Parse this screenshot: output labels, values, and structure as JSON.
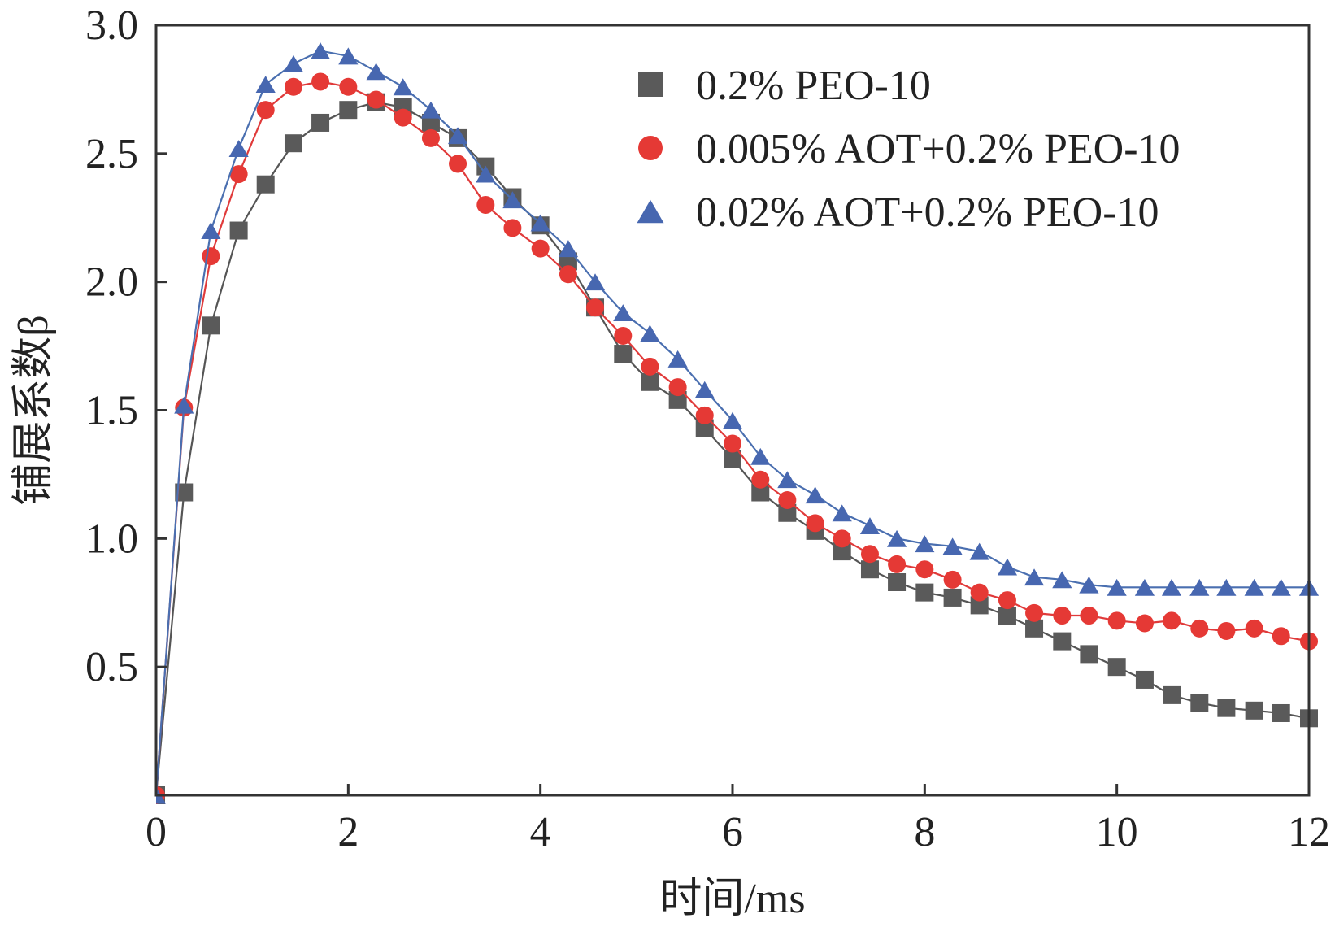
{
  "chart_data": {
    "type": "line",
    "xlabel": "时间/ms",
    "ylabel": "铺展系数β",
    "xlim": [
      0,
      12
    ],
    "ylim": [
      0,
      3.0
    ],
    "xticks": [
      "0",
      "2",
      "4",
      "6",
      "8",
      "10",
      "12"
    ],
    "yticks": [
      "0.5",
      "1.0",
      "1.5",
      "2.0",
      "2.5",
      "3.0"
    ],
    "legend_position": "top-right",
    "grid": false,
    "series": [
      {
        "name": "0.2% PEO-10",
        "marker": "square",
        "color": "#555555",
        "marker_color": "#5a5a5a",
        "x": [
          0,
          0.29,
          0.57,
          0.86,
          1.14,
          1.43,
          1.71,
          2.0,
          2.29,
          2.57,
          2.86,
          3.14,
          3.43,
          3.71,
          4.0,
          4.29,
          4.57,
          4.86,
          5.14,
          5.43,
          5.71,
          6.0,
          6.29,
          6.57,
          6.86,
          7.14,
          7.43,
          7.71,
          8.0,
          8.29,
          8.57,
          8.86,
          9.14,
          9.43,
          9.71,
          10.0,
          10.29,
          10.57,
          10.86,
          11.14,
          11.43,
          11.71,
          12.0
        ],
        "y": [
          0.0,
          1.18,
          1.83,
          2.2,
          2.38,
          2.54,
          2.62,
          2.67,
          2.7,
          2.68,
          2.62,
          2.56,
          2.45,
          2.33,
          2.22,
          2.08,
          1.9,
          1.72,
          1.61,
          1.54,
          1.43,
          1.31,
          1.18,
          1.1,
          1.03,
          0.95,
          0.88,
          0.83,
          0.79,
          0.77,
          0.74,
          0.7,
          0.65,
          0.6,
          0.55,
          0.5,
          0.45,
          0.39,
          0.36,
          0.34,
          0.33,
          0.32,
          0.3
        ]
      },
      {
        "name": "0.005% AOT+0.2% PEO-10",
        "marker": "circle",
        "color": "#e03a3a",
        "marker_color": "#e53935",
        "x": [
          0,
          0.29,
          0.57,
          0.86,
          1.14,
          1.43,
          1.71,
          2.0,
          2.29,
          2.57,
          2.86,
          3.14,
          3.43,
          3.71,
          4.0,
          4.29,
          4.57,
          4.86,
          5.14,
          5.43,
          5.71,
          6.0,
          6.29,
          6.57,
          6.86,
          7.14,
          7.43,
          7.71,
          8.0,
          8.29,
          8.57,
          8.86,
          9.14,
          9.43,
          9.71,
          10.0,
          10.29,
          10.57,
          10.86,
          11.14,
          11.43,
          11.71,
          12.0
        ],
        "y": [
          0.0,
          1.51,
          2.1,
          2.42,
          2.67,
          2.76,
          2.78,
          2.76,
          2.71,
          2.64,
          2.56,
          2.46,
          2.3,
          2.21,
          2.13,
          2.03,
          1.9,
          1.79,
          1.67,
          1.59,
          1.48,
          1.37,
          1.23,
          1.15,
          1.06,
          1.0,
          0.94,
          0.9,
          0.88,
          0.84,
          0.79,
          0.76,
          0.71,
          0.7,
          0.7,
          0.68,
          0.67,
          0.68,
          0.65,
          0.64,
          0.65,
          0.62,
          0.6
        ]
      },
      {
        "name": "0.02% AOT+0.2% PEO-10",
        "marker": "triangle",
        "color": "#4a6fb0",
        "marker_color": "#4767b0",
        "x": [
          0,
          0.29,
          0.57,
          0.86,
          1.14,
          1.43,
          1.71,
          2.0,
          2.29,
          2.57,
          2.86,
          3.14,
          3.43,
          3.71,
          4.0,
          4.29,
          4.57,
          4.86,
          5.14,
          5.43,
          5.71,
          6.0,
          6.29,
          6.57,
          6.86,
          7.14,
          7.43,
          7.71,
          8.0,
          8.29,
          8.57,
          8.86,
          9.14,
          9.43,
          9.71,
          10.0,
          10.29,
          10.57,
          10.86,
          11.14,
          11.43,
          11.71,
          12.0
        ],
        "y": [
          0.0,
          1.52,
          2.2,
          2.52,
          2.77,
          2.85,
          2.9,
          2.88,
          2.82,
          2.76,
          2.67,
          2.57,
          2.42,
          2.32,
          2.23,
          2.13,
          2.0,
          1.88,
          1.8,
          1.7,
          1.58,
          1.46,
          1.32,
          1.23,
          1.17,
          1.1,
          1.05,
          1.0,
          0.98,
          0.97,
          0.95,
          0.89,
          0.85,
          0.84,
          0.82,
          0.81,
          0.81,
          0.81,
          0.81,
          0.81,
          0.81,
          0.81,
          0.81
        ]
      }
    ]
  }
}
